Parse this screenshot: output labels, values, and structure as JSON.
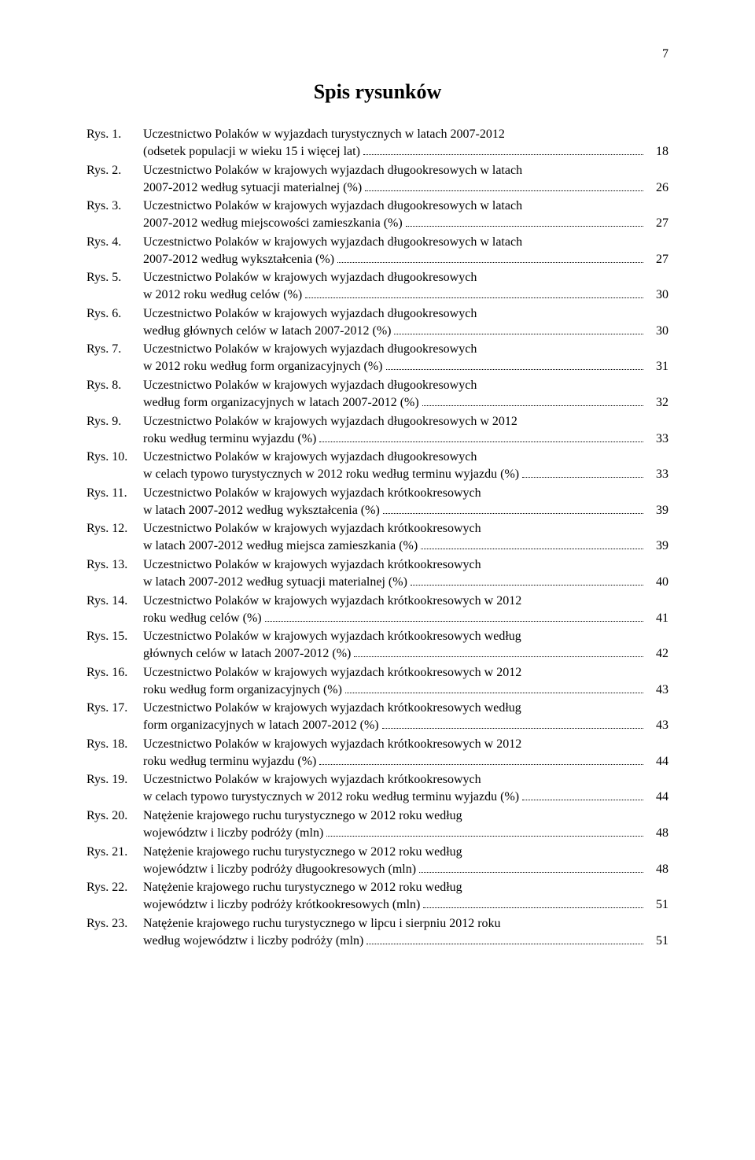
{
  "page_number": "7",
  "title": "Spis rysunków",
  "label_prefix": "Rys.",
  "entries": [
    {
      "num": "1.",
      "pre": "Uczestnictwo Polaków w wyjazdach turystycznych w latach 2007-2012",
      "last": "(odsetek populacji w wieku 15 i więcej lat)",
      "page": "18"
    },
    {
      "num": "2.",
      "pre": "Uczestnictwo Polaków w krajowych wyjazdach długookresowych w latach",
      "last": "2007-2012 według sytuacji materialnej (%)",
      "page": "26"
    },
    {
      "num": "3.",
      "pre": "Uczestnictwo Polaków w krajowych wyjazdach długookresowych w latach",
      "last": "2007-2012 według miejscowości zamieszkania (%)",
      "page": "27"
    },
    {
      "num": "4.",
      "pre": "Uczestnictwo Polaków w krajowych wyjazdach długookresowych w latach",
      "last": "2007-2012 według wykształcenia (%)",
      "page": "27"
    },
    {
      "num": "5.",
      "pre": "Uczestnictwo Polaków w krajowych wyjazdach długookresowych",
      "last": "w 2012 roku według celów (%)",
      "page": "30"
    },
    {
      "num": "6.",
      "pre": "Uczestnictwo Polaków w krajowych wyjazdach długookresowych",
      "last": "według głównych celów w latach 2007-2012 (%)",
      "page": "30"
    },
    {
      "num": "7.",
      "pre": "Uczestnictwo Polaków w krajowych wyjazdach długookresowych",
      "last": "w 2012 roku według form organizacyjnych (%)",
      "page": "31"
    },
    {
      "num": "8.",
      "pre": "Uczestnictwo Polaków w krajowych wyjazdach długookresowych",
      "last": "według form organizacyjnych w latach 2007-2012 (%)",
      "page": "32"
    },
    {
      "num": "9.",
      "pre": "Uczestnictwo Polaków w krajowych wyjazdach długookresowych w 2012",
      "last": "roku według terminu wyjazdu (%)",
      "page": "33"
    },
    {
      "num": "10.",
      "pre": "Uczestnictwo Polaków w krajowych wyjazdach długookresowych",
      "last": "w celach typowo turystycznych w 2012 roku według terminu wyjazdu (%)",
      "page": "33"
    },
    {
      "num": "11.",
      "pre": "Uczestnictwo Polaków w krajowych wyjazdach krótkookresowych",
      "last": "w latach 2007-2012 według wykształcenia (%)",
      "page": "39"
    },
    {
      "num": "12.",
      "pre": "Uczestnictwo Polaków w krajowych wyjazdach krótkookresowych",
      "last": "w latach 2007-2012 według miejsca zamieszkania (%)",
      "page": "39"
    },
    {
      "num": "13.",
      "pre": "Uczestnictwo Polaków w krajowych wyjazdach krótkookresowych",
      "last": "w latach 2007-2012 według sytuacji materialnej (%)",
      "page": "40"
    },
    {
      "num": "14.",
      "pre": "Uczestnictwo Polaków w krajowych wyjazdach krótkookresowych w 2012",
      "last": "roku według celów (%)",
      "page": "41"
    },
    {
      "num": "15.",
      "pre": "Uczestnictwo Polaków w krajowych wyjazdach krótkookresowych według",
      "last": "głównych celów w latach 2007-2012 (%)",
      "page": "42"
    },
    {
      "num": "16.",
      "pre": "Uczestnictwo Polaków w krajowych wyjazdach krótkookresowych w 2012",
      "last": "roku według form organizacyjnych (%)",
      "page": "43"
    },
    {
      "num": "17.",
      "pre": "Uczestnictwo Polaków w krajowych wyjazdach krótkookresowych według",
      "last": "form organizacyjnych w latach 2007-2012 (%)",
      "page": "43"
    },
    {
      "num": "18.",
      "pre": "Uczestnictwo Polaków w krajowych wyjazdach krótkookresowych w 2012",
      "last": "roku według terminu wyjazdu (%)",
      "page": "44"
    },
    {
      "num": "19.",
      "pre": "Uczestnictwo Polaków w krajowych wyjazdach krótkookresowych",
      "last": "w celach typowo turystycznych w 2012 roku według terminu wyjazdu (%)",
      "page": "44"
    },
    {
      "num": "20.",
      "pre": "Natężenie krajowego ruchu turystycznego w 2012 roku według",
      "last": "województw i liczby podróży (mln)",
      "page": "48"
    },
    {
      "num": "21.",
      "pre": "Natężenie krajowego ruchu turystycznego w 2012 roku według",
      "last": "województw i liczby podróży długookresowych (mln)",
      "page": "48"
    },
    {
      "num": "22.",
      "pre": "Natężenie krajowego ruchu turystycznego w 2012 roku według",
      "last": "województw i liczby podróży krótkookresowych (mln)",
      "page": "51"
    },
    {
      "num": "23.",
      "pre": "Natężenie krajowego ruchu turystycznego w lipcu i sierpniu 2012 roku",
      "last": "według województw i liczby podróży (mln)",
      "page": "51"
    }
  ],
  "colors": {
    "text": "#000000",
    "background": "#ffffff"
  },
  "typography": {
    "body_font": "Times New Roman",
    "body_size_pt": 12,
    "title_size_pt": 20,
    "title_weight": "bold"
  }
}
